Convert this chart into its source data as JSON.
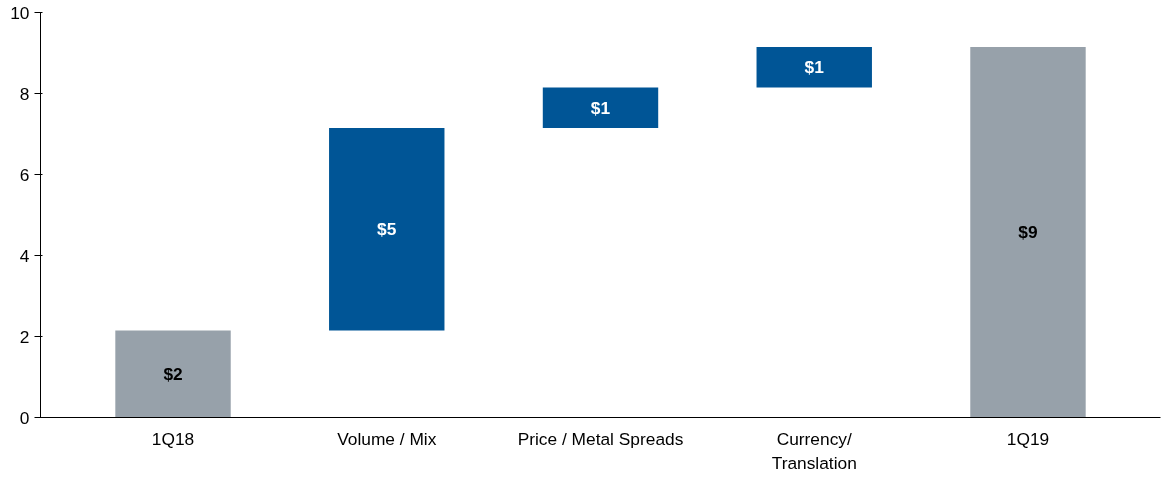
{
  "chart_data": {
    "type": "bar",
    "categories": [
      "1Q18",
      "Volume / Mix",
      "Price / Metal Spreads",
      "Currency/\nTranslation",
      "1Q19"
    ],
    "values": [
      2.15,
      5.0,
      1.0,
      1.0,
      9.15
    ],
    "base": [
      0,
      2.15,
      7.15,
      8.15,
      0
    ],
    "colors": [
      "#97a1aa",
      "#005596",
      "#005596",
      "#005596",
      "#97a1aa"
    ],
    "value_labels": [
      "$2",
      "$5",
      "$1",
      "$1",
      "$9"
    ],
    "ylim": [
      0,
      10
    ],
    "yticks": [
      0,
      2,
      4,
      6,
      8,
      10
    ]
  }
}
